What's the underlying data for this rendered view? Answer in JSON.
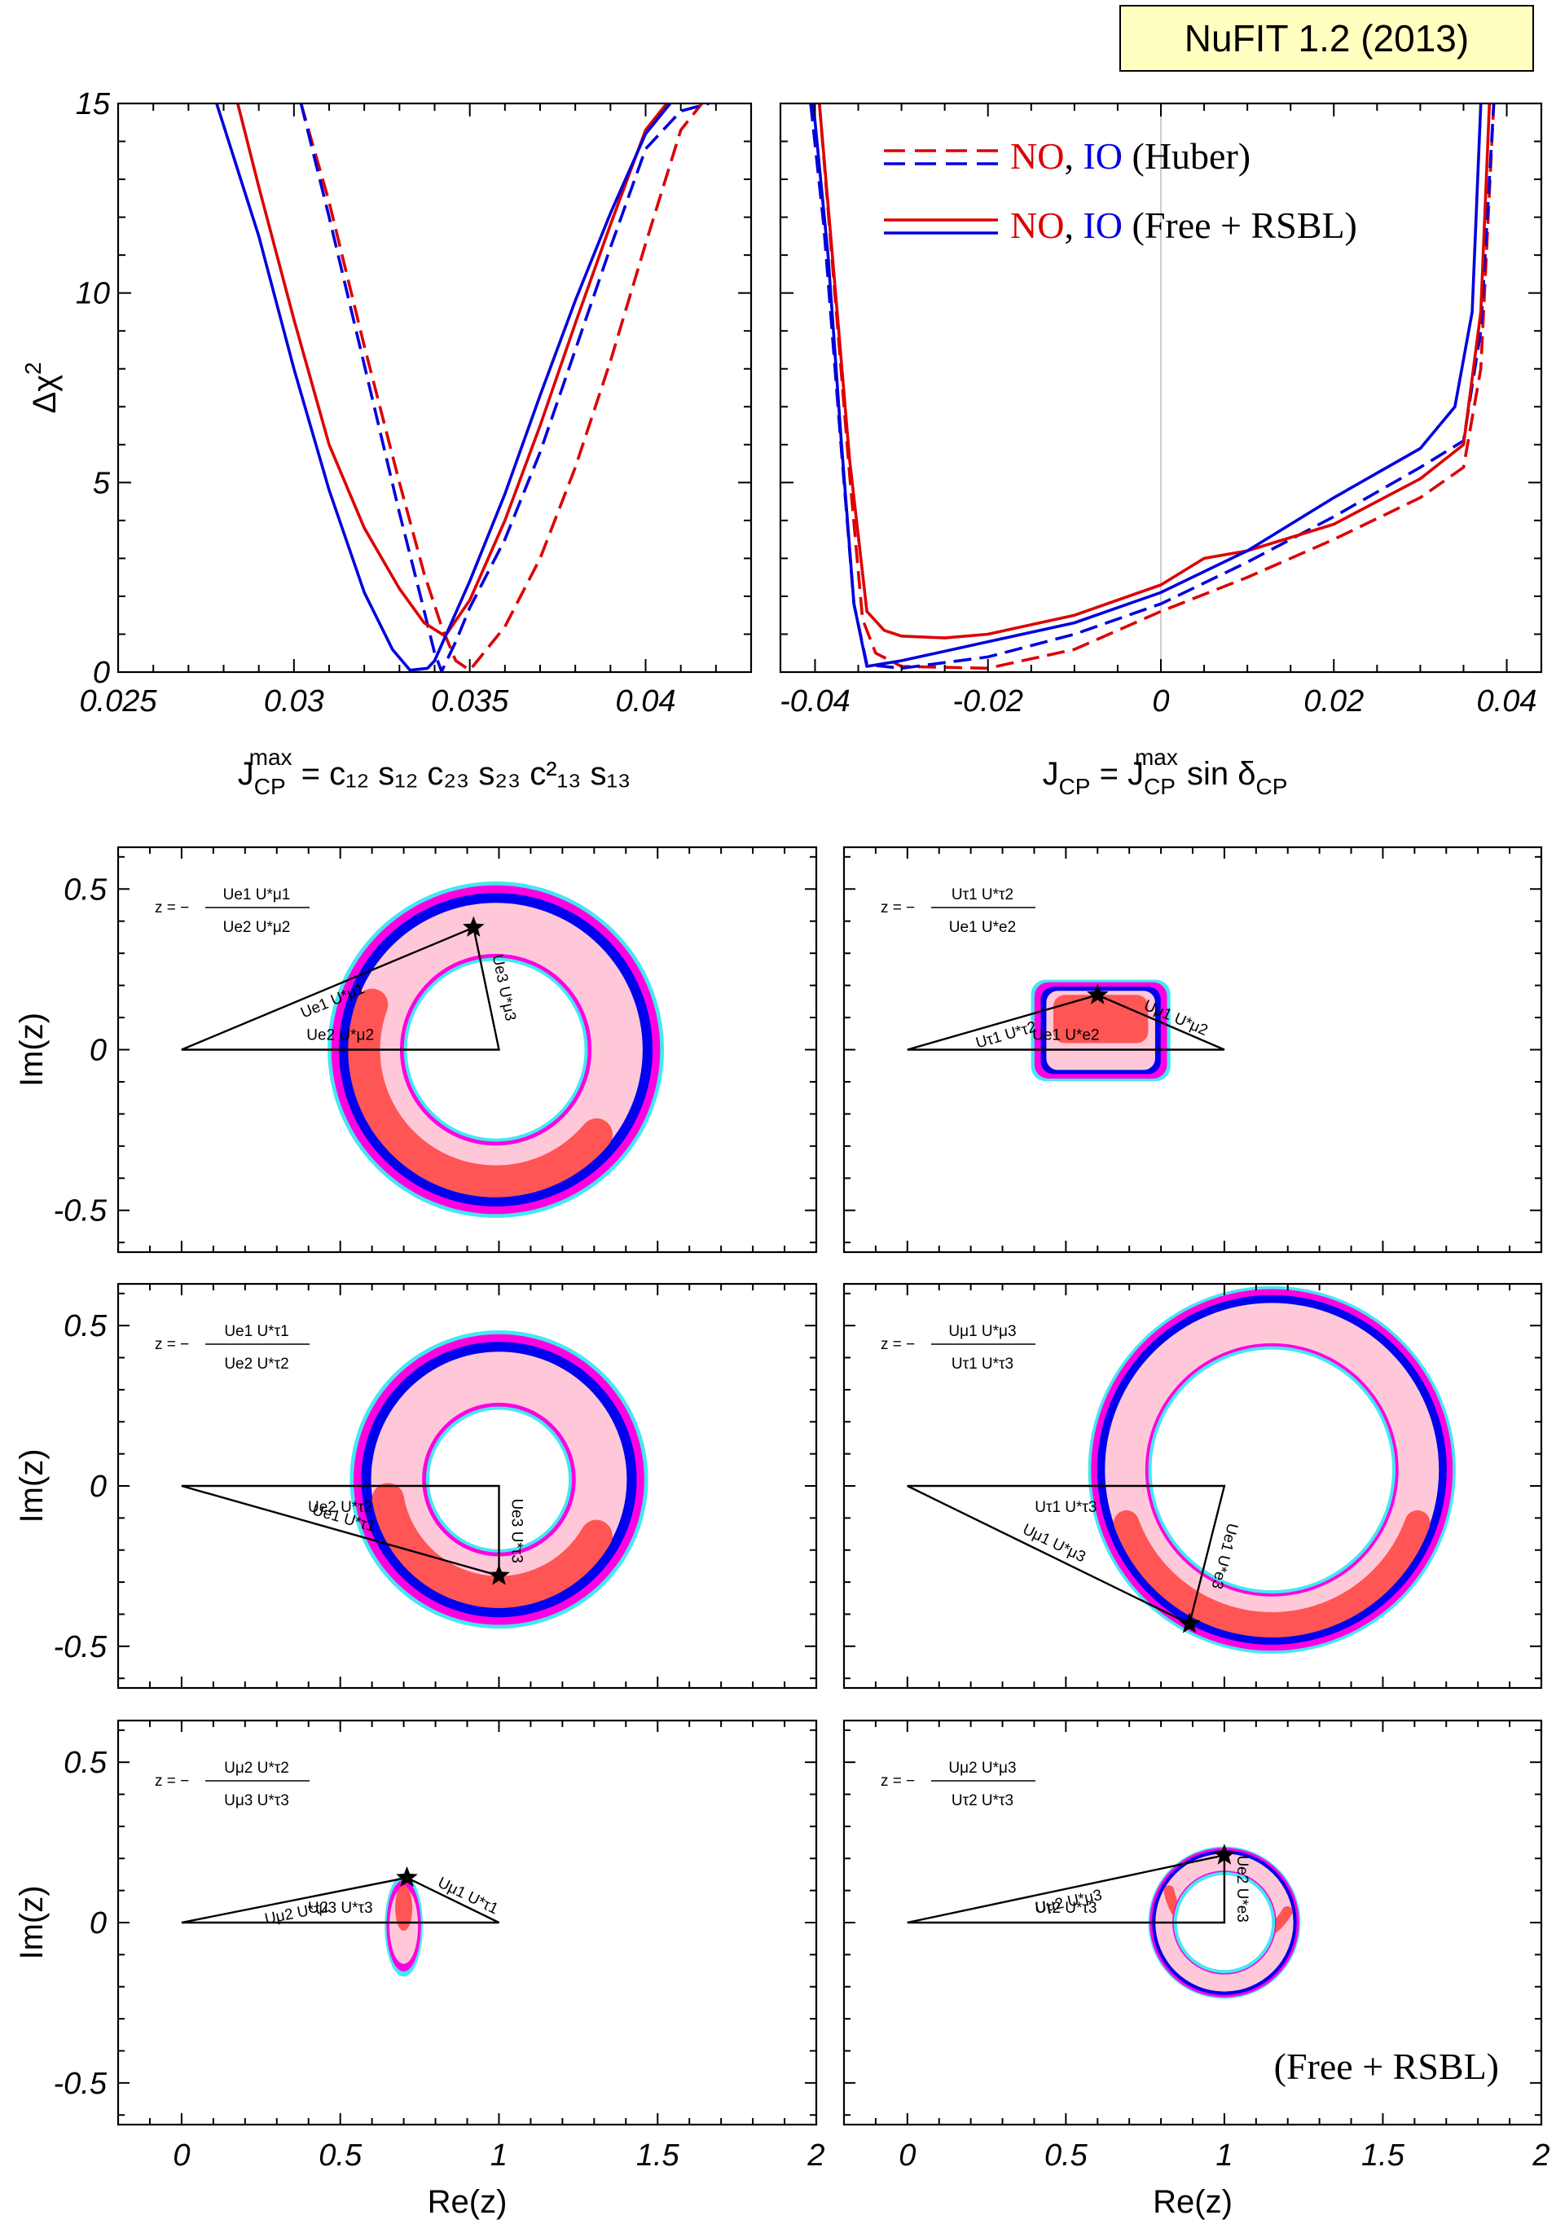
{
  "badge": {
    "text": "NuFIT 1.2 (2013)",
    "bg": "#ffffc0"
  },
  "colors": {
    "NO": "#dd0000",
    "IO": "#0000dd",
    "cyan": "#44e8f0",
    "magenta": "#ff00e0",
    "blue": "#0000ee",
    "pink": "#ffc8d8",
    "salmon": "#ff5555"
  },
  "top_panels": {
    "ylabel": "Δχ",
    "ylabel_sup": "2",
    "left_xlabel": {
      "main": "J",
      "sub1": "CP",
      "sup1": "max",
      "rest": " = c₁₂ s₁₂ c₂₃ s₂₃ c²₁₃ s₁₃"
    },
    "right_xlabel": {
      "main": "J",
      "sub1": "CP",
      "mid": " = J",
      "sup2": "max",
      "sub2": "CP",
      "rest": " sin δ",
      "sub3": "CP"
    },
    "legend": [
      {
        "style": "dashed",
        "no": "NO",
        "sep": ", ",
        "io": "IO",
        "desc": " (Huber)"
      },
      {
        "style": "solid",
        "no": "NO",
        "sep": ", ",
        "io": "IO",
        "desc": " (Free + RSBL)"
      }
    ]
  },
  "bottom_panels": {
    "ylabel": "Im(z)",
    "xlabel": "Re(z)",
    "corner_note": "(Free + RSBL)",
    "panels": [
      {
        "formula_num": "U_e1 U*_μ1",
        "formula_den": "U_e2 U*_μ2",
        "side_a": "U_e1 U*_μ1",
        "side_b": "U_e2 U*_μ2",
        "side_c": "U_e3 U*_μ3",
        "apex_re": 0.92,
        "apex_im": 0.38
      },
      {
        "formula_num": "U_τ1 U*_τ2",
        "formula_den": "U_e1 U*_e2",
        "side_a": "U_τ1 U*_τ2",
        "side_b": "U_e1 U*_e2",
        "side_c": "U_μ1 U*_μ2",
        "apex_re": 0.6,
        "apex_im": 0.17
      },
      {
        "formula_num": "U_e1 U*_τ1",
        "formula_den": "U_e2 U*_τ2",
        "side_a": "U_e1 U*_τ1",
        "side_b": "U_e2 U*_τ2",
        "side_c": "U_e3 U*_τ3",
        "apex_re": 1.0,
        "apex_im": -0.28
      },
      {
        "formula_num": "U_μ1 U*_μ3",
        "formula_den": "U_τ1 U*_τ3",
        "side_a": "U_μ1 U*_μ3",
        "side_b": "U_τ1 U*_τ3",
        "side_c": "U_e1 U*_e3",
        "apex_re": 0.89,
        "apex_im": -0.43
      },
      {
        "formula_num": "U_μ2 U*_τ2",
        "formula_den": "U_μ3 U*_τ3",
        "side_a": "U_μ2 U*_τ2",
        "side_b": "U_μ3 U*_τ3",
        "side_c": "U_μ1 U*_τ1",
        "apex_re": 0.71,
        "apex_im": 0.14
      },
      {
        "formula_num": "U_μ2 U*_μ3",
        "formula_den": "U_τ2 U*_τ3",
        "side_a": "U_μ2 U*_μ3",
        "side_b": "U_τ2 U*_τ3",
        "side_c": "U_e2 U*_e3",
        "apex_re": 1.0,
        "apex_im": 0.21
      }
    ]
  },
  "chart_data": [
    {
      "type": "line",
      "xlabel": "J_CP^max = c12 s12 c23 s23 c13^2 s13",
      "ylabel": "Δχ²",
      "xlim": [
        0.025,
        0.043
      ],
      "ylim": [
        0,
        15
      ],
      "xticks": [
        "0.025",
        "0.03",
        "0.035",
        "0.04"
      ],
      "yticks": [
        "0",
        "5",
        "10",
        "15"
      ],
      "series": [
        {
          "name": "NO (Huber)",
          "style": "dashed",
          "color": "#dd0000",
          "x": [
            0.0302,
            0.031,
            0.032,
            0.033,
            0.0337,
            0.0342,
            0.0346,
            0.035,
            0.036,
            0.037,
            0.038,
            0.039,
            0.04,
            0.041,
            0.0416
          ],
          "y": [
            15,
            12.4,
            8.6,
            5.0,
            2.6,
            1.2,
            0.3,
            0.05,
            1.2,
            3.0,
            5.4,
            8.2,
            11.3,
            14.3,
            15
          ]
        },
        {
          "name": "IO (Huber)",
          "style": "dashed",
          "color": "#0000dd",
          "x": [
            0.0302,
            0.031,
            0.032,
            0.033,
            0.0336,
            0.034,
            0.0342,
            0.0346,
            0.035,
            0.036,
            0.037,
            0.038,
            0.039,
            0.04,
            0.041,
            0.0418
          ],
          "y": [
            15,
            12.0,
            8.1,
            4.2,
            2.0,
            0.5,
            0.02,
            0.8,
            1.7,
            3.5,
            5.8,
            8.5,
            11.2,
            13.8,
            14.8,
            15
          ]
        },
        {
          "name": "NO (Free + RSBL)",
          "style": "solid",
          "color": "#dd0000",
          "x": [
            0.0284,
            0.029,
            0.03,
            0.031,
            0.032,
            0.033,
            0.0337,
            0.0343,
            0.035,
            0.036,
            0.037,
            0.038,
            0.039,
            0.04,
            0.0406
          ],
          "y": [
            15,
            12.8,
            9.3,
            6.0,
            3.8,
            2.2,
            1.3,
            0.95,
            1.9,
            4.0,
            6.5,
            9.2,
            11.8,
            14.3,
            15
          ]
        },
        {
          "name": "IO (Free + RSBL)",
          "style": "solid",
          "color": "#0000dd",
          "x": [
            0.0278,
            0.029,
            0.03,
            0.031,
            0.032,
            0.0328,
            0.0333,
            0.0338,
            0.034,
            0.035,
            0.036,
            0.037,
            0.038,
            0.039,
            0.04,
            0.0407
          ],
          "y": [
            15,
            11.5,
            8.0,
            4.8,
            2.1,
            0.6,
            0.05,
            0.1,
            0.3,
            2.4,
            4.7,
            7.3,
            9.8,
            12.1,
            14.2,
            15
          ]
        }
      ]
    },
    {
      "type": "line",
      "xlabel": "J_CP = J_CP^max sin δ_CP",
      "ylabel": "Δχ²",
      "xlim": [
        -0.044,
        0.044
      ],
      "ylim": [
        0,
        15
      ],
      "xticks": [
        "-0.04",
        "-0.02",
        "0",
        "0.02",
        "0.04"
      ],
      "yticks": [
        "0",
        "5",
        "10",
        "15"
      ],
      "legend": [
        "NO, IO (Huber)",
        "NO, IO (Free + RSBL)"
      ],
      "series": [
        {
          "name": "NO (Huber)",
          "style": "dashed",
          "color": "#dd0000",
          "x": [
            -0.0395,
            -0.038,
            -0.036,
            -0.0345,
            -0.033,
            -0.03,
            -0.02,
            -0.01,
            0.0,
            0.01,
            0.02,
            0.03,
            0.035,
            0.037,
            0.0385
          ],
          "y": [
            15,
            10.8,
            5.2,
            1.4,
            0.5,
            0.15,
            0.1,
            0.6,
            1.6,
            2.5,
            3.5,
            4.6,
            5.4,
            8.0,
            15
          ]
        },
        {
          "name": "IO (Huber)",
          "style": "dashed",
          "color": "#0000dd",
          "x": [
            -0.0405,
            -0.039,
            -0.037,
            -0.0355,
            -0.034,
            -0.03,
            -0.02,
            -0.01,
            0.0,
            0.01,
            0.02,
            0.03,
            0.035,
            0.037,
            0.0385
          ],
          "y": [
            15,
            11.8,
            6.0,
            1.8,
            0.2,
            0.1,
            0.4,
            1.0,
            1.8,
            2.9,
            4.1,
            5.4,
            6.1,
            9.0,
            15
          ]
        },
        {
          "name": "NO (Free + RSBL)",
          "style": "solid",
          "color": "#dd0000",
          "x": [
            -0.0395,
            -0.038,
            -0.036,
            -0.034,
            -0.032,
            -0.03,
            -0.025,
            -0.02,
            -0.01,
            0.0,
            0.005,
            0.01,
            0.02,
            0.03,
            0.035,
            0.037,
            0.038
          ],
          "y": [
            15,
            11.0,
            5.6,
            1.6,
            1.1,
            0.95,
            0.9,
            1.0,
            1.5,
            2.3,
            3.0,
            3.2,
            3.9,
            5.1,
            6.0,
            9.5,
            15
          ]
        },
        {
          "name": "IO (Free + RSBL)",
          "style": "solid",
          "color": "#0000dd",
          "x": [
            -0.0402,
            -0.0385,
            -0.037,
            -0.0355,
            -0.034,
            -0.03,
            -0.02,
            -0.01,
            0.0,
            0.01,
            0.02,
            0.03,
            0.034,
            0.036,
            0.037
          ],
          "y": [
            15,
            11.0,
            6.2,
            1.8,
            0.15,
            0.3,
            0.8,
            1.3,
            2.1,
            3.2,
            4.6,
            5.9,
            7.0,
            9.5,
            15
          ]
        }
      ]
    },
    {
      "type": "scatter",
      "xlabel": "Re(z)",
      "ylabel": "Im(z)",
      "xlim": [
        -0.2,
        2.0
      ],
      "ylim": [
        -0.63,
        0.63
      ],
      "xticks": [
        "0",
        "0.5",
        "1",
        "1.5",
        "2"
      ],
      "yticks": [
        "-0.5",
        "0",
        "0.5"
      ],
      "triangle": {
        "re": [
          0,
          1,
          0.92
        ],
        "im": [
          0,
          0,
          0.38
        ]
      },
      "region": {
        "center_re": 0.99,
        "center_im": 0.0,
        "outer_radius": 0.53,
        "inner_radius": 0.29
      }
    },
    {
      "type": "scatter",
      "xlabel": "Re(z)",
      "ylabel": "Im(z)",
      "xlim": [
        -0.2,
        2.0
      ],
      "ylim": [
        -0.63,
        0.63
      ],
      "triangle": {
        "re": [
          0,
          1,
          0.6
        ],
        "im": [
          0,
          0,
          0.17
        ]
      },
      "region": {
        "center_re": 0.61,
        "center_im": 0.06,
        "half_width": 0.22,
        "half_height": 0.16
      }
    },
    {
      "type": "scatter",
      "xlabel": "Re(z)",
      "ylabel": "Im(z)",
      "xlim": [
        -0.2,
        2.0
      ],
      "ylim": [
        -0.63,
        0.63
      ],
      "triangle": {
        "re": [
          0,
          1,
          1.0
        ],
        "im": [
          0,
          0,
          -0.28
        ]
      },
      "region": {
        "center_re": 1.0,
        "center_im": 0.02,
        "outer_radius": 0.47,
        "inner_radius": 0.23
      }
    },
    {
      "type": "scatter",
      "xlabel": "Re(z)",
      "ylabel": "Im(z)",
      "xlim": [
        -0.2,
        2.0
      ],
      "ylim": [
        -0.63,
        0.63
      ],
      "triangle": {
        "re": [
          0,
          1,
          0.89
        ],
        "im": [
          0,
          0,
          -0.43
        ]
      },
      "region": {
        "center_re": 1.15,
        "center_im": 0.05,
        "outer_radius": 0.58,
        "inner_radius": 0.39
      }
    },
    {
      "type": "scatter",
      "xlabel": "Re(z)",
      "ylabel": "Im(z)",
      "xlim": [
        -0.2,
        2.0
      ],
      "ylim": [
        -0.63,
        0.63
      ],
      "triangle": {
        "re": [
          0,
          1,
          0.71
        ],
        "im": [
          0,
          0,
          0.14
        ]
      },
      "region": {
        "center_re": 0.7,
        "center_im": -0.01,
        "half_width": 0.06,
        "half_height": 0.16
      }
    },
    {
      "type": "scatter",
      "xlabel": "Re(z)",
      "ylabel": "Im(z)",
      "xlim": [
        -0.2,
        2.0
      ],
      "ylim": [
        -0.63,
        0.63
      ],
      "triangle": {
        "re": [
          0,
          1,
          1.0
        ],
        "im": [
          0,
          0,
          0.21
        ]
      },
      "region": {
        "center_re": 1.0,
        "center_im": 0.0,
        "outer_radius": 0.24,
        "inner_radius": 0.16
      }
    }
  ]
}
